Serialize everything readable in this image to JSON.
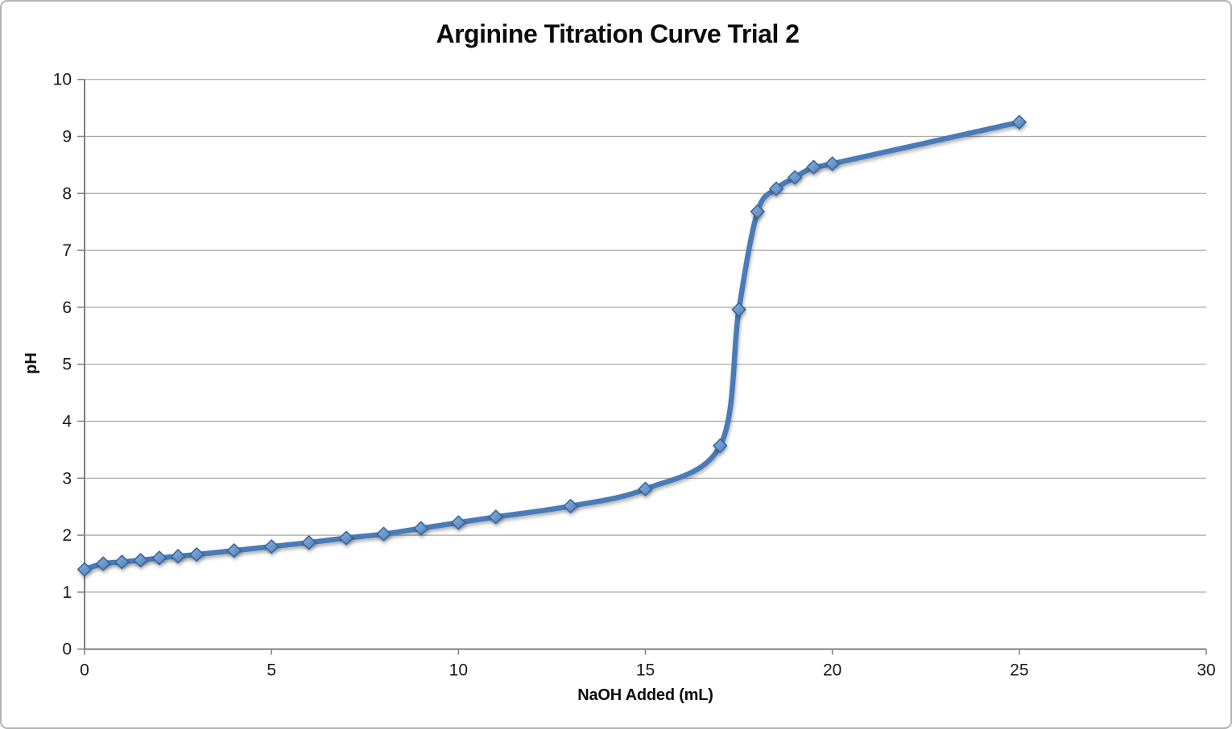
{
  "chart_data": {
    "type": "line",
    "title": "Arginine Titration Curve Trial 2",
    "xlabel": "NaOH Added (mL)",
    "ylabel": "pH",
    "xlim": [
      0,
      30
    ],
    "ylim": [
      0,
      10
    ],
    "x_ticks": [
      0,
      5,
      10,
      15,
      20,
      25,
      30
    ],
    "y_ticks": [
      0,
      1,
      2,
      3,
      4,
      5,
      6,
      7,
      8,
      9,
      10
    ],
    "grid": "horizontal",
    "legend_position": "none",
    "marker_shape": "diamond",
    "line_smooth": true,
    "series": [
      {
        "name": "pH",
        "x": [
          0,
          0.5,
          1,
          1.5,
          2,
          2.5,
          3,
          4,
          5,
          6,
          7,
          8,
          9,
          10,
          11,
          13,
          15,
          17,
          17.5,
          18,
          18.5,
          19,
          19.5,
          20,
          25
        ],
        "y": [
          1.4,
          1.5,
          1.53,
          1.56,
          1.6,
          1.63,
          1.66,
          1.73,
          1.8,
          1.87,
          1.95,
          2.02,
          2.12,
          2.22,
          2.32,
          2.51,
          2.81,
          3.57,
          5.96,
          7.68,
          8.08,
          8.28,
          8.46,
          8.52,
          9.25
        ]
      }
    ],
    "colors": {
      "line": "#4a7bb7",
      "marker_fill_light": "#8cb4e3",
      "marker_fill_dark": "#4d7db6",
      "marker_stroke": "#38669c",
      "gridline": "#a6a6a6",
      "axis": "#808080",
      "tick_text": "#1a1a1a"
    }
  }
}
